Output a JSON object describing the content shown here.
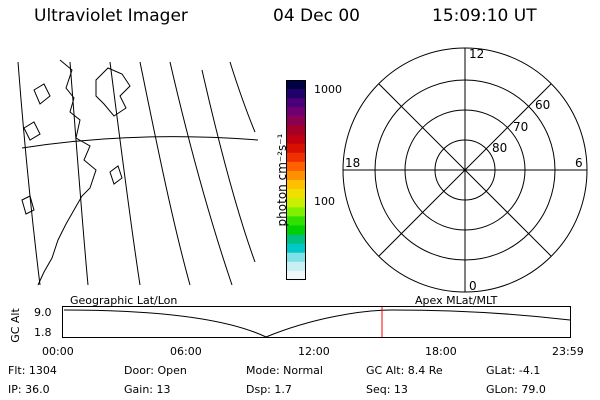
{
  "header": {
    "title": "Ultraviolet Imager",
    "date": "04 Dec 00",
    "time": "15:09:10 UT"
  },
  "colorbar": {
    "unit_label": "photon cm⁻²s⁻¹",
    "tick_labels": [
      "1000",
      "100"
    ],
    "colors": [
      "#000044",
      "#20006a",
      "#4a0078",
      "#700070",
      "#8c0050",
      "#a4002a",
      "#c00010",
      "#d81000",
      "#f03000",
      "#ff6000",
      "#ff9000",
      "#ffc000",
      "#f0e000",
      "#c8f000",
      "#80f000",
      "#30e000",
      "#00d000",
      "#00c080",
      "#00c8c8",
      "#80e0e8",
      "#c8f0f4",
      "#f0f8fa"
    ]
  },
  "polar_plot": {
    "mlt_labels": {
      "top": "12",
      "left": "18",
      "right": "6",
      "bottom": "0"
    },
    "lat_labels": [
      "60",
      "70",
      "80"
    ]
  },
  "timeline": {
    "left_label": "Geographic Lat/Lon",
    "right_label": "Apex  MLat/MLT",
    "y_axis_label": "GC Alt",
    "y_ticks": [
      "9.0",
      "1.8"
    ],
    "x_ticks": [
      "00:00",
      "06:00",
      "12:00",
      "18:00",
      "23:59"
    ],
    "current_marker_color": "#ff0000"
  },
  "status": {
    "flt": "Flt:  1304",
    "door": "Door:  Open",
    "mode": "Mode:  Normal",
    "gc_alt": "GC Alt:  8.4 Re",
    "glat": "GLat:    -4.1",
    "ip": "IP:  36.0",
    "gain": "Gain:  13",
    "dsp": "Dsp:      1.7",
    "seq": "Seq:  13",
    "glon": "GLon:   79.0"
  }
}
